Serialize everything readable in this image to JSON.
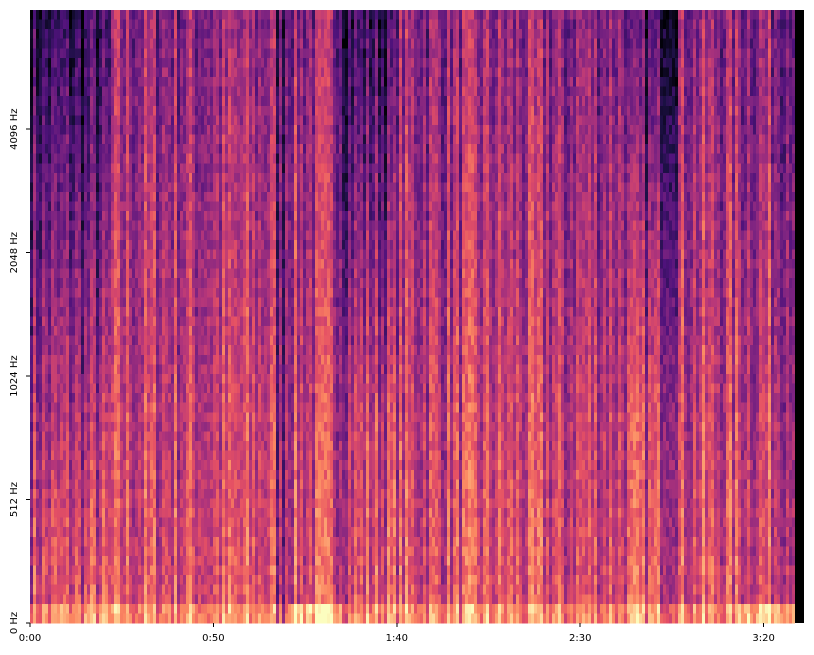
{
  "chart_data": {
    "type": "spectrogram",
    "xlim": [
      0,
      211
    ],
    "xticks": [
      {
        "value": 0,
        "label": "0:00"
      },
      {
        "value": 50,
        "label": "0:50"
      },
      {
        "value": 100,
        "label": "1:40"
      },
      {
        "value": 150,
        "label": "2:30"
      },
      {
        "value": 200,
        "label": "3:20"
      }
    ],
    "ylim": [
      0,
      8000
    ],
    "yscale": "symlog",
    "yticks": [
      {
        "value": 0,
        "label": "0 Hz"
      },
      {
        "value": 512,
        "label": "512 Hz"
      },
      {
        "value": 1024,
        "label": "1024 Hz"
      },
      {
        "value": 2048,
        "label": "2048 Hz"
      },
      {
        "value": 4096,
        "label": "4096 Hz"
      }
    ],
    "colormap": "magma"
  }
}
